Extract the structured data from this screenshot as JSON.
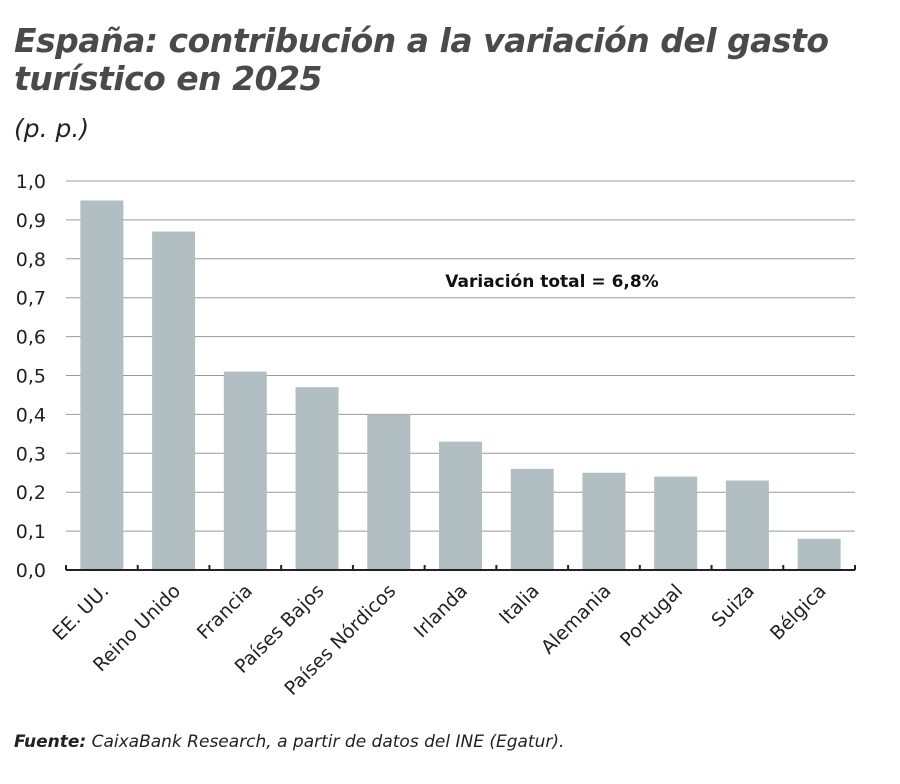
{
  "title": "España: contribución a la variación del gasto turístico en 2025",
  "unit": "(p. p.)",
  "source_label": "Fuente:",
  "source_text": " CaixaBank Research, a partir de datos del INE (Egatur).",
  "chart_data": {
    "type": "bar",
    "title": "España: contribución a la variación del gasto turístico en 2025",
    "ylabel": "(p. p.)",
    "xlabel": "",
    "categories": [
      "EE. UU.",
      "Reino Unido",
      "Francia",
      "Países Bajos",
      "Países Nórdicos",
      "Irlanda",
      "Italia",
      "Alemania",
      "Portugal",
      "Suiza",
      "Bélgica"
    ],
    "values": [
      0.95,
      0.87,
      0.51,
      0.47,
      0.4,
      0.33,
      0.26,
      0.25,
      0.24,
      0.23,
      0.08
    ],
    "ylim": [
      0,
      1.0
    ],
    "yticks": [
      "0,0",
      "0,1",
      "0,2",
      "0,3",
      "0,4",
      "0,5",
      "0,6",
      "0,7",
      "0,8",
      "0,9",
      "1,0"
    ],
    "grid": true,
    "annotation": "Variación total = 6,8%",
    "colors": {
      "bar": "#b1bec2",
      "grid": "#9a9a9a",
      "axis": "#222222"
    }
  }
}
